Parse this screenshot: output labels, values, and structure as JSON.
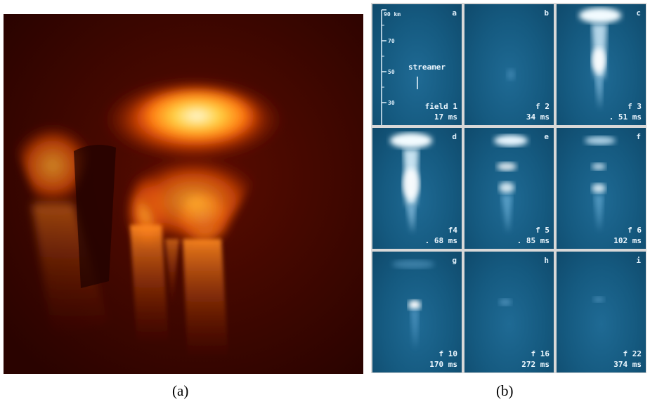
{
  "captions": {
    "a": "(a)",
    "b": "(b)"
  },
  "frames": [
    {
      "letter": "a",
      "field": "field 1",
      "time": "17 ms"
    },
    {
      "letter": "b",
      "field": "f 2",
      "time": "34 ms"
    },
    {
      "letter": "c",
      "field": "f 3",
      "time": ". 51 ms"
    },
    {
      "letter": "d",
      "field": "f4",
      "time": ". 68 ms"
    },
    {
      "letter": "e",
      "field": "f 5",
      "time": ". 85 ms"
    },
    {
      "letter": "f",
      "field": "f 6",
      "time": "102 ms"
    },
    {
      "letter": "g",
      "field": "f 10",
      "time": "170 ms"
    },
    {
      "letter": "h",
      "field": "f 16",
      "time": "272 ms"
    },
    {
      "letter": "i",
      "field": "f 22",
      "time": "374 ms"
    }
  ],
  "altitude_scale": {
    "top": "90 km",
    "ticks": [
      "70",
      "50",
      "30"
    ],
    "label": "streamer"
  },
  "colors": {
    "sprite_hot": "#fff4a0",
    "sprite_warm": "#ff9a1a",
    "sprite_dark": "#3a0500",
    "frame_bg": "#155a80"
  }
}
